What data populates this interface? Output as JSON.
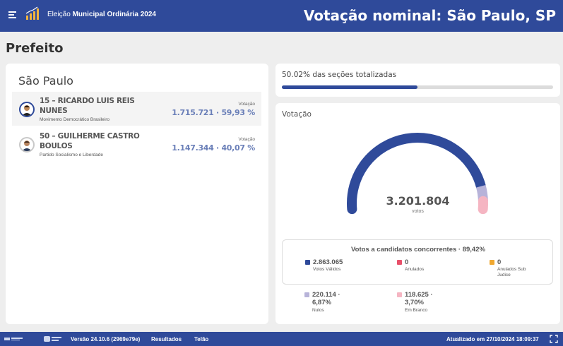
{
  "header": {
    "app_title_prefix": "Eleição ",
    "app_title_bold": "Municipal Ordinária 2024",
    "page_title": "Votação nominal: São Paulo, SP"
  },
  "section_title": "Prefeito",
  "left": {
    "city": "São Paulo",
    "candidates": [
      {
        "name": "15 – RICARDO LUIS REIS NUNES",
        "party": "Movimento Democrático Brasileiro",
        "vote_label": "Votação",
        "votes": "1.715.721 · 59,93 %"
      },
      {
        "name": "50 – GUILHERME CASTRO BOULOS",
        "party": "Partido Socialismo e Liberdade",
        "vote_label": "Votação",
        "votes": "1.147.344 · 40,07 %"
      }
    ]
  },
  "progress": {
    "text": "50.02% das seções totalizadas",
    "fraction": 0.5002
  },
  "vote_panel": {
    "title": "Votação",
    "total": "3.201.804",
    "total_label": "votos",
    "gauge": {
      "segments": [
        {
          "name": "Votos Válidos",
          "value": 2863065,
          "color": "#2f4a9a"
        },
        {
          "name": "Nulos",
          "value": 220114,
          "color": "#b7b3d9"
        },
        {
          "name": "Em Branco",
          "value": 118625,
          "color": "#f5b5c2"
        }
      ]
    },
    "legend_title": "Votos a candidatos concorrentes · 89,42%",
    "legend": [
      {
        "value": "2.863.065",
        "label": "Votos Válidos",
        "color": "#2f4a9a"
      },
      {
        "value": "0",
        "label": "Anulados",
        "color": "#e8506a"
      },
      {
        "value": "0",
        "label": "Anulados Sub Judice",
        "color": "#f0a830"
      },
      {
        "value": "220.114 · 6,87%",
        "label": "Nulos",
        "color": "#b7b3d9"
      },
      {
        "value": "118.625 · 3,70%",
        "label": "Em Branco",
        "color": "#f5b5c2"
      }
    ]
  },
  "footer": {
    "version": "Versão 24.10.6 (2969e79e)",
    "results": "Resultados",
    "screen": "Telão",
    "updated": "Atualizado em 27/10/2024 18:09:37"
  }
}
